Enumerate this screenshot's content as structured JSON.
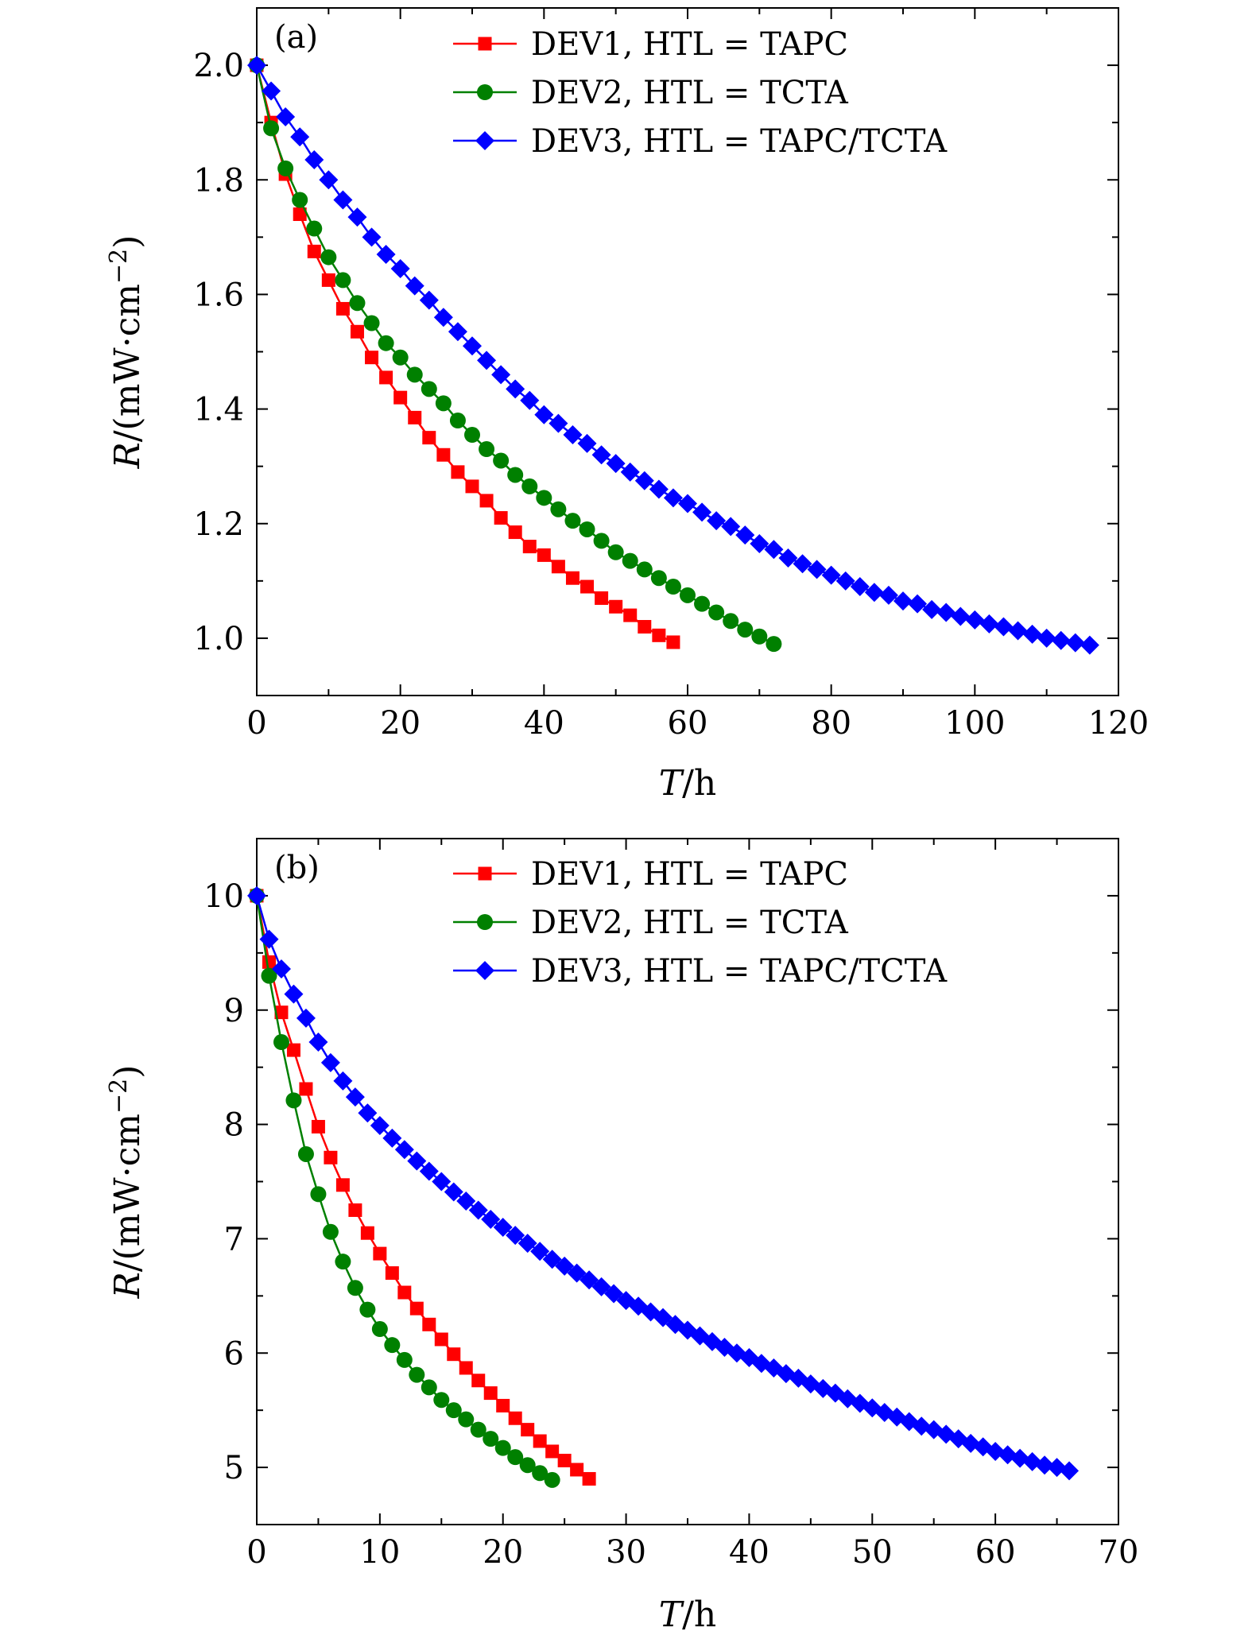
{
  "chart_data": [
    {
      "type": "line",
      "panel_label": "(a)",
      "xlabel_var": "T",
      "xlabel_unit": "/h",
      "ylabel_var": "R",
      "ylabel_unit": "/(mW·cm",
      "ylabel_exp": "−2",
      "ylabel_close": ")",
      "xlim": [
        0,
        120
      ],
      "ylim": [
        0.9,
        2.1
      ],
      "xticks": [
        0,
        20,
        40,
        60,
        80,
        100,
        120
      ],
      "xtick_labels": [
        "0",
        "20",
        "40",
        "60",
        "80",
        "100",
        "120"
      ],
      "yticks": [
        1.0,
        1.2,
        1.4,
        1.6,
        1.8,
        2.0
      ],
      "ytick_labels": [
        "1.0",
        "1.2",
        "1.4",
        "1.6",
        "1.8",
        "2.0"
      ],
      "legend_position": "top-right",
      "series": [
        {
          "name": "DEV1, HTL = TAPC",
          "color": "#ff0000",
          "marker": "square",
          "x": [
            0,
            2,
            4,
            6,
            8,
            10,
            12,
            14,
            16,
            18,
            20,
            22,
            24,
            26,
            28,
            30,
            32,
            34,
            36,
            38,
            40,
            42,
            44,
            46,
            48,
            50,
            52,
            54,
            56,
            58
          ],
          "y": [
            2.0,
            1.9,
            1.81,
            1.74,
            1.675,
            1.625,
            1.575,
            1.535,
            1.49,
            1.455,
            1.42,
            1.385,
            1.35,
            1.32,
            1.29,
            1.265,
            1.24,
            1.21,
            1.185,
            1.16,
            1.145,
            1.125,
            1.105,
            1.09,
            1.07,
            1.055,
            1.04,
            1.02,
            1.005,
            0.993
          ]
        },
        {
          "name": "DEV2, HTL = TCTA",
          "color": "#008000",
          "marker": "circle",
          "x": [
            0,
            2,
            4,
            6,
            8,
            10,
            12,
            14,
            16,
            18,
            20,
            22,
            24,
            26,
            28,
            30,
            32,
            34,
            36,
            38,
            40,
            42,
            44,
            46,
            48,
            50,
            52,
            54,
            56,
            58,
            60,
            62,
            64,
            66,
            68,
            70,
            72
          ],
          "y": [
            2.0,
            1.89,
            1.82,
            1.765,
            1.715,
            1.665,
            1.625,
            1.585,
            1.55,
            1.515,
            1.49,
            1.46,
            1.435,
            1.41,
            1.38,
            1.355,
            1.33,
            1.31,
            1.285,
            1.265,
            1.245,
            1.225,
            1.205,
            1.19,
            1.17,
            1.15,
            1.135,
            1.12,
            1.105,
            1.09,
            1.075,
            1.06,
            1.045,
            1.03,
            1.015,
            1.003,
            0.99
          ]
        },
        {
          "name": "DEV3, HTL = TAPC/TCTA",
          "color": "#0000ff",
          "marker": "diamond",
          "x": [
            0,
            2,
            4,
            6,
            8,
            10,
            12,
            14,
            16,
            18,
            20,
            22,
            24,
            26,
            28,
            30,
            32,
            34,
            36,
            38,
            40,
            42,
            44,
            46,
            48,
            50,
            52,
            54,
            56,
            58,
            60,
            62,
            64,
            66,
            68,
            70,
            72,
            74,
            76,
            78,
            80,
            82,
            84,
            86,
            88,
            90,
            92,
            94,
            96,
            98,
            100,
            102,
            104,
            106,
            108,
            110,
            112,
            114,
            116
          ],
          "y": [
            2.0,
            1.955,
            1.91,
            1.875,
            1.835,
            1.8,
            1.765,
            1.735,
            1.7,
            1.67,
            1.645,
            1.615,
            1.59,
            1.56,
            1.535,
            1.51,
            1.485,
            1.46,
            1.435,
            1.415,
            1.39,
            1.375,
            1.355,
            1.34,
            1.32,
            1.305,
            1.29,
            1.275,
            1.26,
            1.245,
            1.235,
            1.22,
            1.205,
            1.195,
            1.18,
            1.165,
            1.155,
            1.14,
            1.13,
            1.12,
            1.11,
            1.1,
            1.09,
            1.08,
            1.075,
            1.065,
            1.06,
            1.05,
            1.045,
            1.038,
            1.032,
            1.025,
            1.02,
            1.013,
            1.007,
            1.0,
            0.996,
            0.992,
            0.988
          ]
        }
      ]
    },
    {
      "type": "line",
      "panel_label": "(b)",
      "xlabel_var": "T",
      "xlabel_unit": "/h",
      "ylabel_var": "R",
      "ylabel_unit": "/(mW·cm",
      "ylabel_exp": "−2",
      "ylabel_close": ")",
      "xlim": [
        0,
        70
      ],
      "ylim": [
        4.5,
        10.5
      ],
      "xticks": [
        0,
        10,
        20,
        30,
        40,
        50,
        60,
        70
      ],
      "xtick_labels": [
        "0",
        "10",
        "20",
        "30",
        "40",
        "50",
        "60",
        "70"
      ],
      "yticks": [
        5,
        6,
        7,
        8,
        9,
        10
      ],
      "ytick_labels": [
        "5",
        "6",
        "7",
        "8",
        "9",
        "10"
      ],
      "legend_position": "top-right",
      "series": [
        {
          "name": "DEV1, HTL = TAPC",
          "color": "#ff0000",
          "marker": "square",
          "x": [
            0,
            1,
            2,
            3,
            4,
            5,
            6,
            7,
            8,
            9,
            10,
            11,
            12,
            13,
            14,
            15,
            16,
            17,
            18,
            19,
            20,
            21,
            22,
            23,
            24,
            25,
            26,
            27
          ],
          "y": [
            10.0,
            9.42,
            8.98,
            8.65,
            8.31,
            7.98,
            7.71,
            7.47,
            7.25,
            7.05,
            6.87,
            6.7,
            6.53,
            6.39,
            6.25,
            6.12,
            5.99,
            5.87,
            5.76,
            5.65,
            5.54,
            5.43,
            5.33,
            5.23,
            5.14,
            5.06,
            4.98,
            4.9
          ]
        },
        {
          "name": "DEV2, HTL = TCTA",
          "color": "#008000",
          "marker": "circle",
          "x": [
            0,
            1,
            2,
            3,
            4,
            5,
            6,
            7,
            8,
            9,
            10,
            11,
            12,
            13,
            14,
            15,
            16,
            17,
            18,
            19,
            20,
            21,
            22,
            23,
            24
          ],
          "y": [
            10.0,
            9.3,
            8.72,
            8.21,
            7.74,
            7.39,
            7.06,
            6.8,
            6.57,
            6.38,
            6.21,
            6.07,
            5.94,
            5.81,
            5.7,
            5.59,
            5.5,
            5.42,
            5.33,
            5.25,
            5.17,
            5.09,
            5.02,
            4.95,
            4.89
          ]
        },
        {
          "name": "DEV3, HTL = TAPC/TCTA",
          "color": "#0000ff",
          "marker": "diamond",
          "x": [
            0,
            1,
            2,
            3,
            4,
            5,
            6,
            7,
            8,
            9,
            10,
            11,
            12,
            13,
            14,
            15,
            16,
            17,
            18,
            19,
            20,
            21,
            22,
            23,
            24,
            25,
            26,
            27,
            28,
            29,
            30,
            31,
            32,
            33,
            34,
            35,
            36,
            37,
            38,
            39,
            40,
            41,
            42,
            43,
            44,
            45,
            46,
            47,
            48,
            49,
            50,
            51,
            52,
            53,
            54,
            55,
            56,
            57,
            58,
            59,
            60,
            61,
            62,
            63,
            64,
            65,
            66
          ],
          "y": [
            10.0,
            9.62,
            9.36,
            9.14,
            8.93,
            8.72,
            8.54,
            8.38,
            8.24,
            8.1,
            7.99,
            7.88,
            7.78,
            7.68,
            7.59,
            7.5,
            7.41,
            7.33,
            7.25,
            7.17,
            7.1,
            7.03,
            6.96,
            6.89,
            6.82,
            6.76,
            6.7,
            6.64,
            6.58,
            6.52,
            6.46,
            6.41,
            6.36,
            6.31,
            6.25,
            6.2,
            6.15,
            6.1,
            6.05,
            6.0,
            5.96,
            5.91,
            5.87,
            5.82,
            5.78,
            5.73,
            5.69,
            5.65,
            5.6,
            5.56,
            5.52,
            5.48,
            5.44,
            5.4,
            5.36,
            5.33,
            5.29,
            5.25,
            5.21,
            5.18,
            5.14,
            5.11,
            5.08,
            5.05,
            5.02,
            5.0,
            4.97
          ]
        }
      ]
    }
  ]
}
